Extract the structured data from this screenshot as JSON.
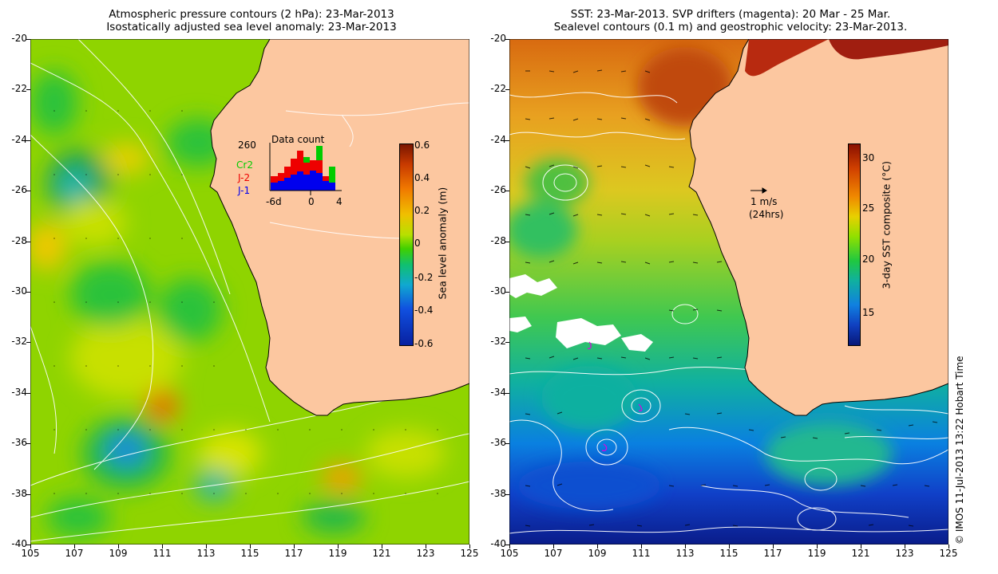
{
  "left": {
    "title_line1": "Atmospheric pressure contours (2 hPa): 23-Mar-2013",
    "title_line2": "Isostatically adjusted sea level anomaly: 23-Mar-2013",
    "colorbar": {
      "label": "Sea level anomaly (m)",
      "ticks": [
        "0.6",
        "0.4",
        "0.2",
        "0",
        "-0.2",
        "-0.4",
        "-0.6"
      ],
      "range": [
        -0.6,
        0.6
      ]
    },
    "inset": {
      "title": "Data count",
      "max_label": "260",
      "legend": [
        {
          "name": "Cr2",
          "color": "#00cc00"
        },
        {
          "name": "J-2",
          "color": "#ee0000"
        },
        {
          "name": "J-1",
          "color": "#0000ee"
        }
      ],
      "xticks": [
        "-6d",
        "0",
        "4"
      ]
    }
  },
  "right": {
    "title_line1": "SST: 23-Mar-2013. SVP drifters (magenta): 20 Mar - 25 Mar.",
    "title_line2": "Sealevel contours (0.1 m) and geostrophic velocity: 23-Mar-2013.",
    "colorbar": {
      "label": "3-day SST composite (°C)",
      "ticks": [
        "30",
        "25",
        "20",
        "15"
      ],
      "range": [
        11,
        31.5
      ]
    },
    "arrow_key_line1": "1 m/s",
    "arrow_key_line2": "(24hrs)"
  },
  "axes": {
    "lon_ticks": [
      "105",
      "107",
      "109",
      "111",
      "113",
      "115",
      "117",
      "119",
      "121",
      "123",
      "125"
    ],
    "lat_ticks": [
      "-20",
      "-22",
      "-24",
      "-26",
      "-28",
      "-30",
      "-32",
      "-34",
      "-36",
      "-38",
      "-40"
    ],
    "lon_range": [
      105,
      125
    ],
    "lat_range": [
      -40,
      -20
    ]
  },
  "credit": "© IMOS 11-Jul-2013 13:22 Hobart Time",
  "colors": {
    "land": "#fcc7a0",
    "coast": "#000000"
  }
}
